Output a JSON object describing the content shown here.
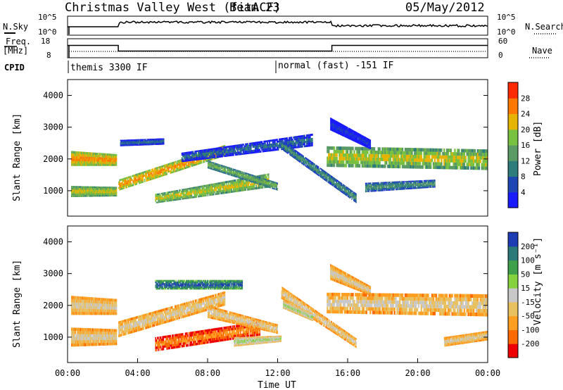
{
  "header": {
    "station": "Christmas Valley West (fitACF)",
    "beam": "Beam 23",
    "date": "05/May/2012"
  },
  "params": {
    "nsky_label": "N.Sky",
    "nsky_ticks": [
      "10^5",
      "10^0"
    ],
    "nsearch_label": "N.Search",
    "nsearch_ticks": [
      "10^5",
      "10^0"
    ],
    "freq_label": "Freq.",
    "freq_unit": "[MHz]",
    "freq_ticks": [
      "18",
      "8"
    ],
    "nave_label": "Nave",
    "nave_ticks": [
      "60",
      "0"
    ],
    "cpid_label": "CPID",
    "cpid_segments": [
      {
        "label": "themis 3300 IF",
        "start_hour": 0,
        "end_hour": 12
      },
      {
        "label": "normal (fast) -151 IF",
        "start_hour": 12,
        "end_hour": 24
      }
    ],
    "freq_steps": [
      {
        "start_hour": 0,
        "end_hour": 2.9,
        "mhz": 14.5
      },
      {
        "start_hour": 2.9,
        "end_hour": 15.1,
        "mhz": 11.5
      },
      {
        "start_hour": 15.1,
        "end_hour": 24,
        "mhz": 14.5
      }
    ]
  },
  "chart_data": [
    {
      "type": "heatmap",
      "name": "power",
      "ylabel": "Slant Range [km]",
      "ytick_labels": [
        "1000",
        "2000",
        "3000",
        "4000"
      ],
      "ylim": [
        200,
        4500
      ],
      "xlim": [
        0,
        24
      ],
      "colorbar_label": "Power [dB]",
      "colorbar_ticks": [
        "28",
        "24",
        "20",
        "16",
        "12",
        "8",
        "4"
      ],
      "colors": [
        "#1a1aff",
        "#1e46b4",
        "#2d7d7d",
        "#5a9a64",
        "#78c040",
        "#e6b400",
        "#ff7800",
        "#ff2a00"
      ],
      "bands": [
        {
          "t": [
            0.2,
            2.8
          ],
          "r0": [
            1780,
            1780
          ],
          "r1": [
            2250,
            2150
          ],
          "level": 6
        },
        {
          "t": [
            0.2,
            2.8
          ],
          "r0": [
            800,
            820
          ],
          "r1": [
            1150,
            1120
          ],
          "level": 5
        },
        {
          "t": [
            2.9,
            9.0
          ],
          "r0": [
            1000,
            2100
          ],
          "r1": [
            1350,
            2450
          ],
          "level": 6
        },
        {
          "t": [
            5.0,
            11.5
          ],
          "r0": [
            600,
            1100
          ],
          "r1": [
            900,
            1550
          ],
          "level": 5
        },
        {
          "t": [
            8.0,
            12.0
          ],
          "r0": [
            1700,
            1000
          ],
          "r1": [
            1950,
            1250
          ],
          "level": 4
        },
        {
          "t": [
            6.5,
            14.0
          ],
          "r0": [
            1900,
            2400
          ],
          "r1": [
            2200,
            2800
          ],
          "level": 2
        },
        {
          "t": [
            12.2,
            16.5
          ],
          "r0": [
            2300,
            600
          ],
          "r1": [
            2600,
            900
          ],
          "level": 3
        },
        {
          "t": [
            14.8,
            24.0
          ],
          "r0": [
            1750,
            1650
          ],
          "r1": [
            2400,
            2300
          ],
          "level": 5
        },
        {
          "t": [
            15.0,
            17.3
          ],
          "r0": [
            2900,
            2300
          ],
          "r1": [
            3300,
            2600
          ],
          "level": 1
        },
        {
          "t": [
            17.0,
            21.0
          ],
          "r0": [
            950,
            1100
          ],
          "r1": [
            1250,
            1350
          ],
          "level": 3
        },
        {
          "t": [
            3.0,
            5.5
          ],
          "r0": [
            2400,
            2450
          ],
          "r1": [
            2600,
            2650
          ],
          "level": 2
        }
      ]
    },
    {
      "type": "heatmap",
      "name": "velocity",
      "xlabel": "Time UT",
      "ylabel": "Slant Range [km]",
      "ytick_labels": [
        "1000",
        "2000",
        "3000",
        "4000"
      ],
      "ylim": [
        200,
        4500
      ],
      "xlim": [
        0,
        24
      ],
      "xtick_labels": [
        "00:00",
        "04:00",
        "08:00",
        "12:00",
        "16:00",
        "20:00",
        "00:00"
      ],
      "colorbar_label": "Velocity [m s⁻¹]",
      "colorbar_ticks": [
        "200",
        "100",
        "50",
        "15",
        "-15",
        "-50",
        "-100",
        "-200"
      ],
      "colors": [
        "#ee0000",
        "#ff6a00",
        "#ff9e20",
        "#e8c060",
        "#c8c8c8",
        "#86d23e",
        "#3ea04a",
        "#2a7a7a",
        "#1e3cb4"
      ],
      "bands": [
        {
          "t": [
            0.2,
            2.8
          ],
          "r0": [
            1700,
            1700
          ],
          "r1": [
            2300,
            2200
          ],
          "level": 4
        },
        {
          "t": [
            0.2,
            2.8
          ],
          "r0": [
            700,
            750
          ],
          "r1": [
            1300,
            1250
          ],
          "level": 4
        },
        {
          "t": [
            2.9,
            9.0
          ],
          "r0": [
            1000,
            2000
          ],
          "r1": [
            1500,
            2450
          ],
          "level": 4
        },
        {
          "t": [
            5.0,
            11.0
          ],
          "r0": [
            550,
            1050
          ],
          "r1": [
            1000,
            1500
          ],
          "level": 2
        },
        {
          "t": [
            9.5,
            12.2
          ],
          "r0": [
            700,
            850
          ],
          "r1": [
            1000,
            1050
          ],
          "level": 5
        },
        {
          "t": [
            8.0,
            12.0
          ],
          "r0": [
            1600,
            1100
          ],
          "r1": [
            2000,
            1400
          ],
          "level": 4
        },
        {
          "t": [
            5.0,
            10.0
          ],
          "r0": [
            2500,
            2500
          ],
          "r1": [
            2800,
            2800
          ],
          "level": 8
        },
        {
          "t": [
            12.2,
            16.5
          ],
          "r0": [
            2200,
            650
          ],
          "r1": [
            2600,
            950
          ],
          "level": 4
        },
        {
          "t": [
            12.3,
            14.0
          ],
          "r0": [
            1900,
            1500
          ],
          "r1": [
            2150,
            1750
          ],
          "level": 5
        },
        {
          "t": [
            14.8,
            24.0
          ],
          "r0": [
            1750,
            1650
          ],
          "r1": [
            2400,
            2350
          ],
          "level": 4
        },
        {
          "t": [
            15.0,
            17.3
          ],
          "r0": [
            2800,
            2300
          ],
          "r1": [
            3300,
            2600
          ],
          "level": 4
        },
        {
          "t": [
            21.5,
            24.0
          ],
          "r0": [
            700,
            900
          ],
          "r1": [
            1000,
            1200
          ],
          "level": 4
        }
      ]
    }
  ]
}
